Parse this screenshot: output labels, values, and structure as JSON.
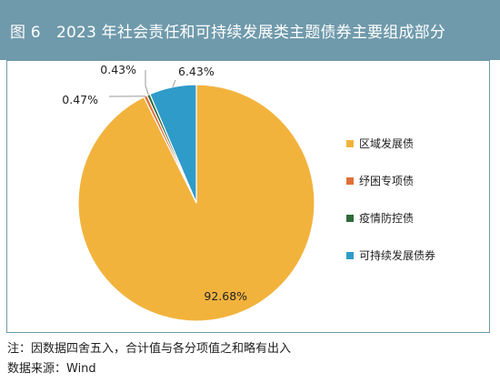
{
  "header": {
    "title": "图 6　2023 年社会责任和可持续发展类主题债券主要组成部分",
    "bg_color": "#6f9aab"
  },
  "chart_data": {
    "type": "pie",
    "title": "图 6　2023 年社会责任和可持续发展类主题债券主要组成部分",
    "series": [
      {
        "name": "区域发展债",
        "value": 92.68,
        "label": "92.68%",
        "color": "#f2b33d"
      },
      {
        "name": "纾困专项债",
        "value": 0.47,
        "label": "0.47%",
        "color": "#e0703a"
      },
      {
        "name": "疫情防控债",
        "value": 0.43,
        "label": "0.43%",
        "color": "#2e6a3a"
      },
      {
        "name": "可持续发展债券",
        "value": 6.43,
        "label": "6.43%",
        "color": "#2f9bc9"
      }
    ],
    "legend_position": "right"
  },
  "footnotes": {
    "note": "注：因数据四舍五入，合计值与各分项值之和略有出入",
    "source": "数据来源：Wind"
  }
}
